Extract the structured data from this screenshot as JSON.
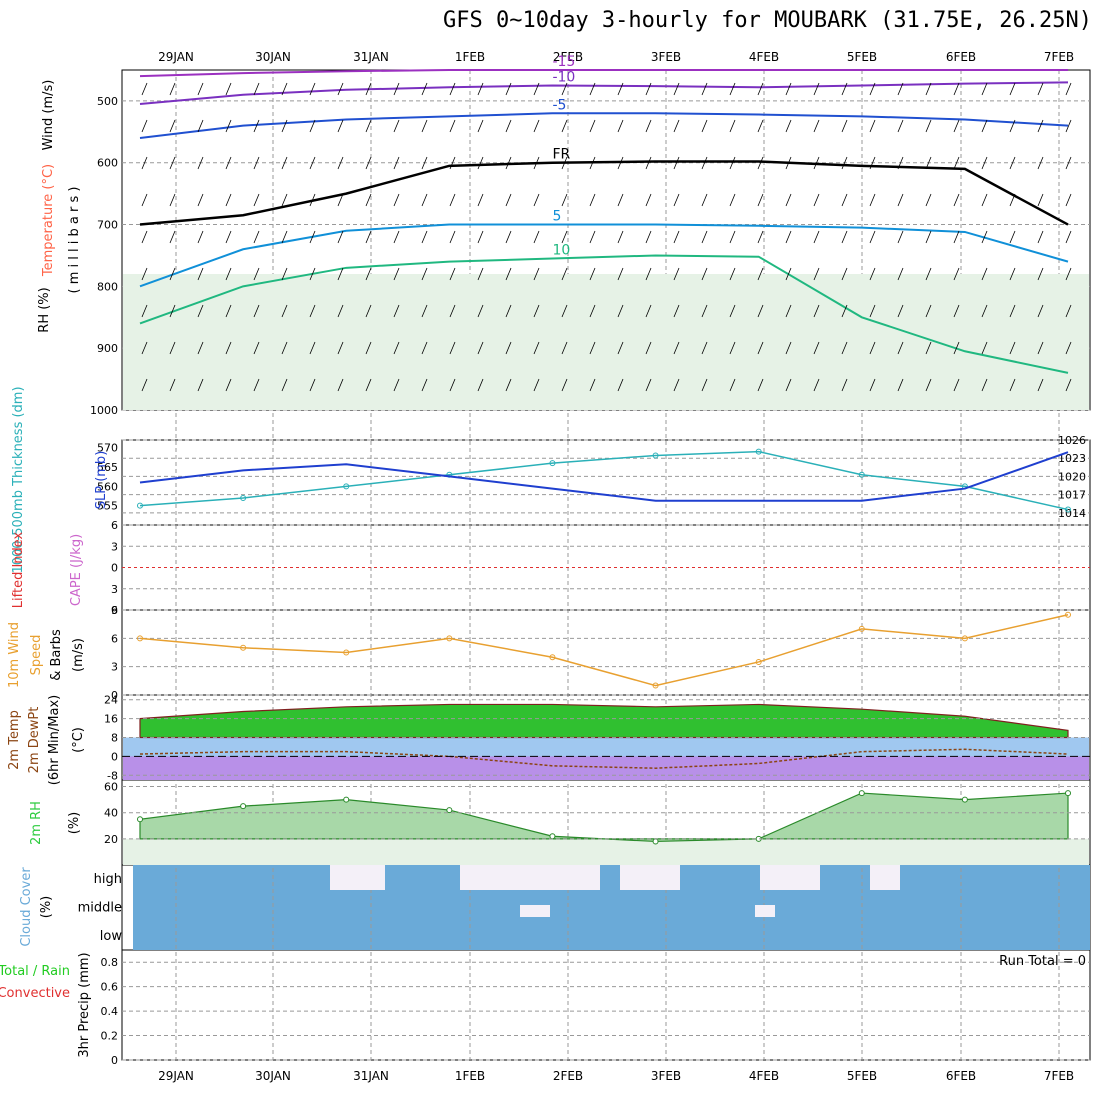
{
  "title": "GFS 0~10day 3-hourly for MOUBARK (31.75E, 26.25N)",
  "dates": [
    "29JAN",
    "30JAN",
    "31JAN",
    "1FEB",
    "2FEB",
    "3FEB",
    "4FEB",
    "5FEB",
    "6FEB",
    "7FEB"
  ],
  "colors": {
    "grid": "#999999",
    "temp": "#ff6347",
    "wind": "#000000",
    "rh": "#2ecc40",
    "slp": "#1f3fcf",
    "thickness": "#2ab0b8",
    "cape": "#cc66cc",
    "li": "#e03030",
    "wind10": "#e8a030",
    "cloud": "#6aaad8",
    "precip_total": "#22cc22",
    "precip_conv": "#e03030"
  },
  "labels": {
    "upper_wind": "Wind (m/s)",
    "upper_temp": "Temperature (°C)",
    "upper_rh": "RH (%)",
    "upper_pressure": "( m i l l i b a r s )",
    "thickness": "1000-500mb Thickness (dm)",
    "slp": "SLP (mb)",
    "li": "Lifted Index",
    "cape": "CAPE (J/kg)",
    "wind10": "10m Wind",
    "wind10b": "Speed",
    "wind10c": "& Barbs",
    "wind10u": "(m/s)",
    "temp2m_a": "2m Temp",
    "temp2m_b": "2m DewPt",
    "temp2m_c": "(6hr Min/Max)",
    "temp2m_u": "(°C)",
    "rh2m": "2m RH",
    "rh2m_u": "(%)",
    "cloud": "Cloud Cover",
    "cloud_u": "(%)",
    "precip_a": "Total / Rain",
    "precip_b": "Convective",
    "precip_c": "3hr Precip (mm)",
    "run_total": "Run Total = 0"
  },
  "chart_data": [
    {
      "type": "line",
      "title": "GFS 0~10day 3-hourly for MOUBARK (31.75E, 26.25N)",
      "panel": "upper-air temperature contours",
      "ylabel": "millibars",
      "y_ticks": [
        500,
        600,
        700,
        800,
        900,
        1000
      ],
      "ylim": [
        1000,
        450
      ],
      "series": [
        {
          "name": "-15",
          "values": [
            460,
            455,
            452,
            450,
            450,
            450,
            450,
            450,
            450,
            450
          ]
        },
        {
          "name": "-10",
          "values": [
            505,
            490,
            482,
            478,
            475,
            476,
            478,
            475,
            472,
            470
          ]
        },
        {
          "name": "-5",
          "values": [
            560,
            540,
            530,
            525,
            520,
            520,
            522,
            525,
            530,
            540
          ]
        },
        {
          "name": "FR",
          "values": [
            700,
            685,
            650,
            605,
            600,
            598,
            598,
            605,
            610,
            700
          ]
        },
        {
          "name": "5",
          "values": [
            800,
            740,
            710,
            700,
            700,
            700,
            702,
            705,
            712,
            760
          ]
        },
        {
          "name": "10",
          "values": [
            860,
            800,
            770,
            760,
            755,
            750,
            752,
            850,
            905,
            940
          ]
        }
      ]
    },
    {
      "type": "line",
      "panel": "thickness and SLP",
      "x": [
        "29JAN",
        "30JAN",
        "31JAN",
        "1FEB",
        "2FEB",
        "3FEB",
        "4FEB",
        "5FEB",
        "6FEB",
        "7FEB"
      ],
      "series": [
        {
          "name": "1000-500mb Thickness (dm)",
          "values": [
            555,
            557,
            560,
            563,
            566,
            568,
            569,
            563,
            560,
            554
          ]
        },
        {
          "name": "SLP (mb)",
          "values": [
            1019,
            1021,
            1022,
            1020,
            1018,
            1016,
            1016,
            1016,
            1018,
            1024
          ]
        }
      ],
      "ylim_thickness": [
        550,
        572
      ],
      "y_ticks_thickness": [
        555,
        560,
        565,
        570
      ],
      "ylim_slp": [
        1012,
        1026
      ],
      "y_ticks_slp": [
        1014,
        1017,
        1020,
        1023,
        1026
      ]
    },
    {
      "type": "line",
      "panel": "Lifted Index / CAPE",
      "y_ticks": [
        6,
        3,
        0,
        3,
        6
      ],
      "series": [
        {
          "name": "Lifted Index",
          "values": [
            0,
            0,
            0,
            0,
            0,
            0,
            0,
            0,
            0,
            0
          ]
        }
      ]
    },
    {
      "type": "line",
      "panel": "10m wind speed",
      "ylabel": "(m/s)",
      "ylim": [
        0,
        9
      ],
      "y_ticks": [
        0,
        3,
        6,
        9
      ],
      "series": [
        {
          "name": "10m Wind Speed",
          "values": [
            6.0,
            5.0,
            4.5,
            6.0,
            4.0,
            1.0,
            3.5,
            7.0,
            6.0,
            8.5
          ]
        }
      ]
    },
    {
      "type": "area",
      "panel": "2m temperature / dewpoint",
      "ylabel": "(°C)",
      "ylim": [
        -10,
        26
      ],
      "y_ticks": [
        24,
        16,
        8,
        0,
        -8
      ],
      "series": [
        {
          "name": "2m Temp",
          "values": [
            16,
            19,
            21,
            22,
            22,
            21,
            22,
            20,
            17,
            11
          ]
        },
        {
          "name": "2m DewPt",
          "values": [
            1,
            2,
            2,
            0,
            -4,
            -5,
            -3,
            2,
            3,
            1
          ]
        }
      ]
    },
    {
      "type": "area",
      "panel": "2m RH",
      "ylabel": "(%)",
      "ylim": [
        0,
        65
      ],
      "y_ticks": [
        20,
        40,
        60
      ],
      "series": [
        {
          "name": "2m RH",
          "values": [
            35,
            45,
            50,
            42,
            22,
            18,
            20,
            55,
            50,
            55
          ]
        }
      ]
    },
    {
      "type": "heatmap",
      "panel": "Cloud Cover",
      "rows": [
        "high",
        "middle",
        "low"
      ]
    },
    {
      "type": "bar",
      "panel": "3hr Precip (mm)",
      "ylim": [
        0,
        0.9
      ],
      "y_ticks": [
        0,
        0.2,
        0.4,
        0.6,
        0.8
      ],
      "values": [
        0,
        0,
        0,
        0,
        0,
        0,
        0,
        0,
        0,
        0
      ]
    }
  ]
}
